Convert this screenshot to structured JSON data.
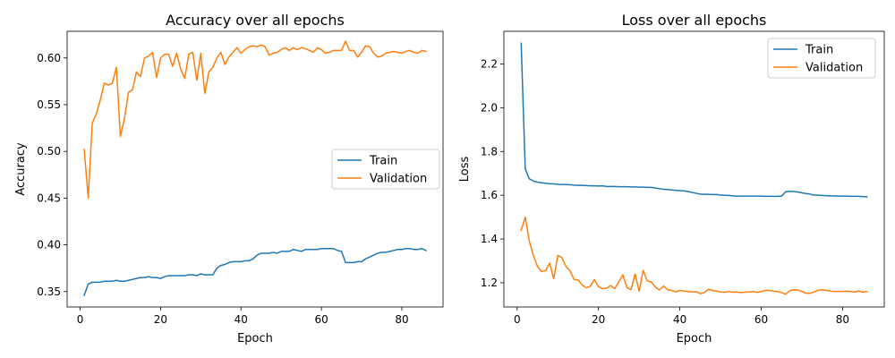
{
  "colors": {
    "train": "#1f77b4",
    "validation": "#ff7f0e",
    "axis": "#000000",
    "legend_border": "#cccccc"
  },
  "chart_data": [
    {
      "type": "line",
      "title": "Accuracy over all epochs",
      "xlabel": "Epoch",
      "ylabel": "Accuracy",
      "xlim": [
        -3.25,
        90.25
      ],
      "ylim": [
        0.3335,
        0.6285
      ],
      "xticks": [
        0,
        20,
        40,
        60,
        80
      ],
      "yticks": [
        0.35,
        0.4,
        0.45,
        0.5,
        0.55,
        0.6
      ],
      "ytick_labels": [
        "0.35",
        "0.40",
        "0.45",
        "0.50",
        "0.55",
        "0.60"
      ],
      "grid": false,
      "legend_position": "center-right",
      "series": [
        {
          "name": "Train",
          "x": [
            1,
            2,
            3,
            4,
            5,
            6,
            7,
            8,
            9,
            10,
            11,
            12,
            13,
            14,
            15,
            16,
            17,
            18,
            19,
            20,
            21,
            22,
            23,
            24,
            25,
            26,
            27,
            28,
            29,
            30,
            31,
            32,
            33,
            34,
            35,
            36,
            37,
            38,
            39,
            40,
            41,
            42,
            43,
            44,
            45,
            46,
            47,
            48,
            49,
            50,
            51,
            52,
            53,
            54,
            55,
            56,
            57,
            58,
            59,
            60,
            61,
            62,
            63,
            64,
            65,
            66,
            67,
            68,
            69,
            70,
            71,
            72,
            73,
            74,
            75,
            76,
            77,
            78,
            79,
            80,
            81,
            82,
            83,
            84,
            85,
            86
          ],
          "values": [
            0.346,
            0.358,
            0.36,
            0.36,
            0.36,
            0.361,
            0.361,
            0.361,
            0.362,
            0.361,
            0.361,
            0.362,
            0.363,
            0.364,
            0.365,
            0.365,
            0.366,
            0.365,
            0.365,
            0.364,
            0.366,
            0.367,
            0.367,
            0.367,
            0.367,
            0.367,
            0.368,
            0.368,
            0.367,
            0.369,
            0.368,
            0.368,
            0.368,
            0.375,
            0.378,
            0.379,
            0.381,
            0.382,
            0.382,
            0.382,
            0.383,
            0.383,
            0.385,
            0.389,
            0.391,
            0.391,
            0.391,
            0.392,
            0.391,
            0.393,
            0.393,
            0.393,
            0.395,
            0.394,
            0.393,
            0.395,
            0.395,
            0.395,
            0.395,
            0.396,
            0.396,
            0.396,
            0.396,
            0.394,
            0.393,
            0.381,
            0.381,
            0.381,
            0.382,
            0.382,
            0.385,
            0.387,
            0.389,
            0.391,
            0.392,
            0.392,
            0.393,
            0.394,
            0.395,
            0.395,
            0.396,
            0.396,
            0.395,
            0.395,
            0.396,
            0.394
          ]
        },
        {
          "name": "Validation",
          "x": [
            1,
            2,
            3,
            4,
            5,
            6,
            7,
            8,
            9,
            10,
            11,
            12,
            13,
            14,
            15,
            16,
            17,
            18,
            19,
            20,
            21,
            22,
            23,
            24,
            25,
            26,
            27,
            28,
            29,
            30,
            31,
            32,
            33,
            34,
            35,
            36,
            37,
            38,
            39,
            40,
            41,
            42,
            43,
            44,
            45,
            46,
            47,
            48,
            49,
            50,
            51,
            52,
            53,
            54,
            55,
            56,
            57,
            58,
            59,
            60,
            61,
            62,
            63,
            64,
            65,
            66,
            67,
            68,
            69,
            70,
            71,
            72,
            73,
            74,
            75,
            76,
            77,
            78,
            79,
            80,
            81,
            82,
            83,
            84,
            85,
            86
          ],
          "values": [
            0.502,
            0.45,
            0.53,
            0.54,
            0.555,
            0.573,
            0.571,
            0.573,
            0.59,
            0.516,
            0.535,
            0.563,
            0.566,
            0.585,
            0.58,
            0.6,
            0.602,
            0.606,
            0.579,
            0.6,
            0.604,
            0.604,
            0.591,
            0.605,
            0.588,
            0.578,
            0.604,
            0.606,
            0.576,
            0.605,
            0.562,
            0.585,
            0.59,
            0.6,
            0.606,
            0.593,
            0.601,
            0.606,
            0.611,
            0.605,
            0.609,
            0.612,
            0.613,
            0.612,
            0.614,
            0.612,
            0.603,
            0.605,
            0.606,
            0.609,
            0.611,
            0.608,
            0.611,
            0.609,
            0.611,
            0.61,
            0.608,
            0.606,
            0.611,
            0.609,
            0.605,
            0.606,
            0.608,
            0.608,
            0.608,
            0.618,
            0.608,
            0.608,
            0.601,
            0.606,
            0.613,
            0.612,
            0.605,
            0.601,
            0.602,
            0.605,
            0.606,
            0.607,
            0.606,
            0.605,
            0.607,
            0.608,
            0.606,
            0.605,
            0.608,
            0.607
          ]
        }
      ]
    },
    {
      "type": "line",
      "title": "Loss over all epochs",
      "xlabel": "Epoch",
      "ylabel": "Loss",
      "xlim": [
        -3.25,
        90.25
      ],
      "ylim": [
        1.0893,
        2.3492
      ],
      "xticks": [
        0,
        20,
        40,
        60,
        80
      ],
      "yticks": [
        1.2,
        1.4,
        1.6,
        1.8,
        2.0,
        2.2
      ],
      "ytick_labels": [
        "1.2",
        "1.4",
        "1.6",
        "1.8",
        "2.0",
        "2.2"
      ],
      "grid": false,
      "legend_position": "top-right",
      "series": [
        {
          "name": "Train",
          "x": [
            1,
            2,
            3,
            4,
            5,
            6,
            7,
            8,
            9,
            10,
            11,
            12,
            13,
            14,
            15,
            16,
            17,
            18,
            19,
            20,
            21,
            22,
            23,
            24,
            25,
            26,
            27,
            28,
            29,
            30,
            31,
            32,
            33,
            34,
            35,
            36,
            37,
            38,
            39,
            40,
            41,
            42,
            43,
            44,
            45,
            46,
            47,
            48,
            49,
            50,
            51,
            52,
            53,
            54,
            55,
            56,
            57,
            58,
            59,
            60,
            61,
            62,
            63,
            64,
            65,
            66,
            67,
            68,
            69,
            70,
            71,
            72,
            73,
            74,
            75,
            76,
            77,
            78,
            79,
            80,
            81,
            82,
            83,
            84,
            85,
            86
          ],
          "values": [
            2.295,
            1.72,
            1.675,
            1.665,
            1.66,
            1.657,
            1.655,
            1.653,
            1.652,
            1.65,
            1.649,
            1.649,
            1.648,
            1.646,
            1.645,
            1.645,
            1.644,
            1.643,
            1.643,
            1.642,
            1.643,
            1.64,
            1.64,
            1.64,
            1.639,
            1.639,
            1.639,
            1.638,
            1.638,
            1.637,
            1.637,
            1.636,
            1.636,
            1.633,
            1.63,
            1.627,
            1.626,
            1.624,
            1.622,
            1.621,
            1.62,
            1.617,
            1.613,
            1.609,
            1.605,
            1.604,
            1.604,
            1.603,
            1.603,
            1.601,
            1.6,
            1.599,
            1.597,
            1.596,
            1.596,
            1.596,
            1.596,
            1.596,
            1.596,
            1.596,
            1.595,
            1.595,
            1.595,
            1.595,
            1.596,
            1.616,
            1.618,
            1.617,
            1.615,
            1.611,
            1.608,
            1.605,
            1.601,
            1.6,
            1.599,
            1.598,
            1.597,
            1.597,
            1.596,
            1.596,
            1.596,
            1.595,
            1.595,
            1.595,
            1.594,
            1.593
          ]
        },
        {
          "name": "Validation",
          "x": [
            1,
            2,
            3,
            4,
            5,
            6,
            7,
            8,
            9,
            10,
            11,
            12,
            13,
            14,
            15,
            16,
            17,
            18,
            19,
            20,
            21,
            22,
            23,
            24,
            25,
            26,
            27,
            28,
            29,
            30,
            31,
            32,
            33,
            34,
            35,
            36,
            37,
            38,
            39,
            40,
            41,
            42,
            43,
            44,
            45,
            46,
            47,
            48,
            49,
            50,
            51,
            52,
            53,
            54,
            55,
            56,
            57,
            58,
            59,
            60,
            61,
            62,
            63,
            64,
            65,
            66,
            67,
            68,
            69,
            70,
            71,
            72,
            73,
            74,
            75,
            76,
            77,
            78,
            79,
            80,
            81,
            82,
            83,
            84,
            85,
            86
          ],
          "values": [
            1.44,
            1.5,
            1.39,
            1.325,
            1.275,
            1.252,
            1.255,
            1.29,
            1.218,
            1.325,
            1.315,
            1.275,
            1.255,
            1.215,
            1.213,
            1.19,
            1.177,
            1.184,
            1.215,
            1.182,
            1.173,
            1.175,
            1.187,
            1.173,
            1.205,
            1.236,
            1.178,
            1.168,
            1.24,
            1.162,
            1.257,
            1.208,
            1.204,
            1.18,
            1.167,
            1.185,
            1.168,
            1.165,
            1.158,
            1.165,
            1.162,
            1.16,
            1.158,
            1.16,
            1.15,
            1.155,
            1.17,
            1.165,
            1.162,
            1.158,
            1.156,
            1.16,
            1.157,
            1.158,
            1.155,
            1.157,
            1.158,
            1.16,
            1.156,
            1.16,
            1.165,
            1.165,
            1.162,
            1.16,
            1.155,
            1.148,
            1.163,
            1.168,
            1.167,
            1.16,
            1.152,
            1.152,
            1.158,
            1.166,
            1.168,
            1.165,
            1.162,
            1.16,
            1.161,
            1.16,
            1.162,
            1.16,
            1.158,
            1.162,
            1.157,
            1.16
          ]
        }
      ]
    }
  ]
}
